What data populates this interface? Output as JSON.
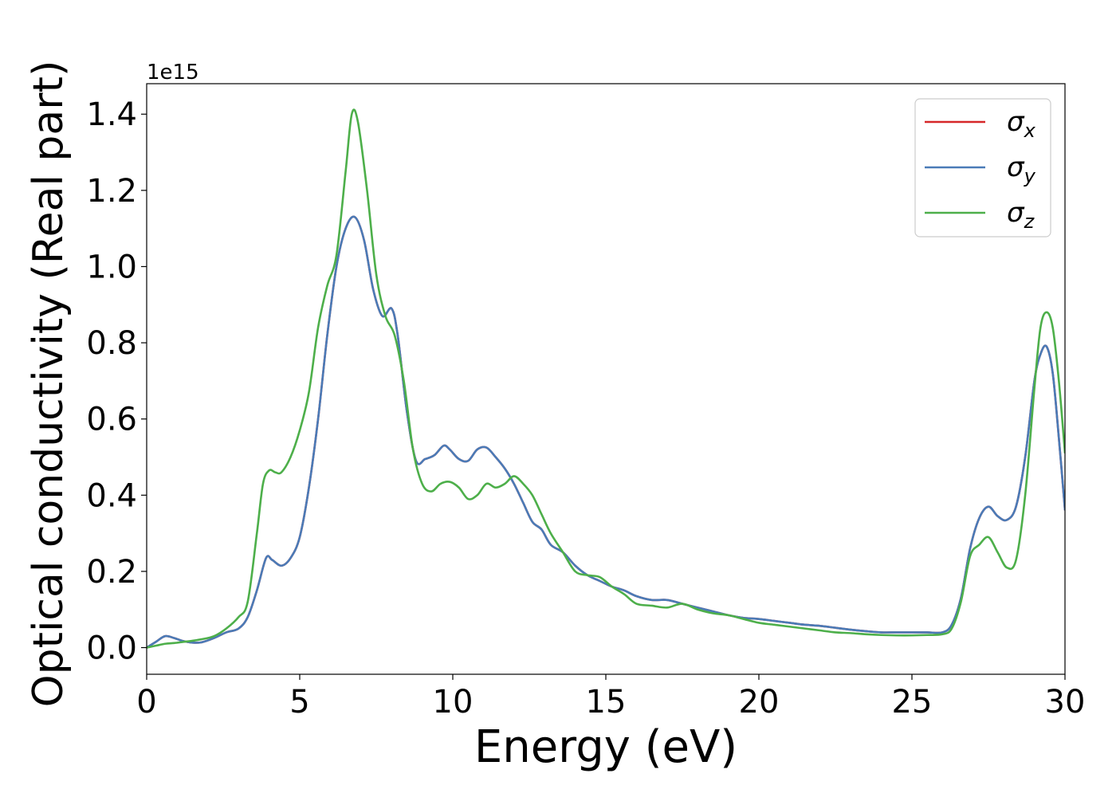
{
  "chart_data": {
    "type": "line",
    "xlabel": "Energy (eV)",
    "ylabel": "Optical conductivity (Real part)",
    "y_offset_text": "1e15",
    "y_scale": 1000000000000000.0,
    "xlim": [
      0,
      30
    ],
    "ylim": [
      -0.07,
      1.48
    ],
    "xticks": [
      0,
      5,
      10,
      15,
      20,
      25,
      30
    ],
    "xtick_labels": [
      "0",
      "5",
      "10",
      "15",
      "20",
      "25",
      "30"
    ],
    "yticks": [
      0.0,
      0.2,
      0.4,
      0.6,
      0.8,
      1.0,
      1.2,
      1.4
    ],
    "ytick_labels": [
      "0.0",
      "0.2",
      "0.4",
      "0.6",
      "0.8",
      "1.0",
      "1.2",
      "1.4"
    ],
    "grid": false,
    "legend_position": "top-right",
    "series": [
      {
        "name": "σx",
        "label_base": "σ",
        "label_sub": "x",
        "color": "#d62728",
        "x": [
          0,
          0.3,
          0.6,
          0.9,
          1.2,
          1.5,
          1.8,
          2.2,
          2.6,
          3.0,
          3.3,
          3.6,
          3.9,
          4.1,
          4.4,
          4.7,
          5.0,
          5.3,
          5.6,
          5.9,
          6.2,
          6.5,
          6.8,
          7.1,
          7.4,
          7.7,
          8.0,
          8.2,
          8.5,
          8.8,
          9.1,
          9.4,
          9.7,
          9.9,
          10.2,
          10.5,
          10.8,
          11.1,
          11.4,
          11.7,
          12.0,
          12.3,
          12.6,
          12.9,
          13.2,
          13.6,
          14.0,
          14.4,
          14.8,
          15.2,
          15.6,
          16.0,
          16.5,
          17.0,
          17.5,
          18.0,
          18.5,
          19.0,
          19.5,
          20.0,
          20.5,
          21.0,
          21.5,
          22.0,
          22.5,
          23.0,
          23.5,
          24.0,
          24.5,
          25.0,
          25.5,
          26.0,
          26.3,
          26.6,
          26.9,
          27.2,
          27.5,
          27.8,
          28.1,
          28.4,
          28.7,
          29.0,
          29.2,
          29.4,
          29.6,
          29.8,
          30.0
        ],
        "y": [
          0.0,
          0.015,
          0.03,
          0.025,
          0.017,
          0.013,
          0.014,
          0.025,
          0.04,
          0.05,
          0.08,
          0.15,
          0.235,
          0.23,
          0.215,
          0.235,
          0.29,
          0.42,
          0.6,
          0.82,
          1.0,
          1.1,
          1.13,
          1.07,
          0.94,
          0.87,
          0.89,
          0.82,
          0.62,
          0.49,
          0.495,
          0.505,
          0.53,
          0.52,
          0.495,
          0.49,
          0.52,
          0.525,
          0.5,
          0.47,
          0.43,
          0.38,
          0.33,
          0.31,
          0.27,
          0.25,
          0.215,
          0.19,
          0.175,
          0.16,
          0.15,
          0.135,
          0.125,
          0.125,
          0.115,
          0.105,
          0.095,
          0.085,
          0.078,
          0.075,
          0.07,
          0.065,
          0.06,
          0.057,
          0.052,
          0.047,
          0.043,
          0.04,
          0.04,
          0.04,
          0.04,
          0.04,
          0.06,
          0.13,
          0.26,
          0.34,
          0.37,
          0.345,
          0.335,
          0.37,
          0.5,
          0.7,
          0.77,
          0.79,
          0.72,
          0.55,
          0.36
        ]
      },
      {
        "name": "σy",
        "label_base": "σ",
        "label_sub": "y",
        "color": "#4a7bb7",
        "x": [
          0,
          0.3,
          0.6,
          0.9,
          1.2,
          1.5,
          1.8,
          2.2,
          2.6,
          3.0,
          3.3,
          3.6,
          3.9,
          4.1,
          4.4,
          4.7,
          5.0,
          5.3,
          5.6,
          5.9,
          6.2,
          6.5,
          6.8,
          7.1,
          7.4,
          7.7,
          8.0,
          8.2,
          8.5,
          8.8,
          9.1,
          9.4,
          9.7,
          9.9,
          10.2,
          10.5,
          10.8,
          11.1,
          11.4,
          11.7,
          12.0,
          12.3,
          12.6,
          12.9,
          13.2,
          13.6,
          14.0,
          14.4,
          14.8,
          15.2,
          15.6,
          16.0,
          16.5,
          17.0,
          17.5,
          18.0,
          18.5,
          19.0,
          19.5,
          20.0,
          20.5,
          21.0,
          21.5,
          22.0,
          22.5,
          23.0,
          23.5,
          24.0,
          24.5,
          25.0,
          25.5,
          26.0,
          26.3,
          26.6,
          26.9,
          27.2,
          27.5,
          27.8,
          28.1,
          28.4,
          28.7,
          29.0,
          29.2,
          29.4,
          29.6,
          29.8,
          30.0
        ],
        "y": [
          0.0,
          0.015,
          0.03,
          0.025,
          0.017,
          0.013,
          0.014,
          0.025,
          0.04,
          0.05,
          0.08,
          0.15,
          0.235,
          0.23,
          0.215,
          0.235,
          0.29,
          0.42,
          0.6,
          0.82,
          1.0,
          1.1,
          1.13,
          1.07,
          0.94,
          0.87,
          0.89,
          0.82,
          0.62,
          0.49,
          0.495,
          0.505,
          0.53,
          0.52,
          0.495,
          0.49,
          0.52,
          0.525,
          0.5,
          0.47,
          0.43,
          0.38,
          0.33,
          0.31,
          0.27,
          0.25,
          0.215,
          0.19,
          0.175,
          0.16,
          0.15,
          0.135,
          0.125,
          0.125,
          0.115,
          0.105,
          0.095,
          0.085,
          0.078,
          0.075,
          0.07,
          0.065,
          0.06,
          0.057,
          0.052,
          0.047,
          0.043,
          0.04,
          0.04,
          0.04,
          0.04,
          0.04,
          0.06,
          0.13,
          0.26,
          0.34,
          0.37,
          0.345,
          0.335,
          0.37,
          0.5,
          0.7,
          0.77,
          0.79,
          0.72,
          0.55,
          0.36
        ]
      },
      {
        "name": "σz",
        "label_base": "σ",
        "label_sub": "z",
        "color": "#4daf4a",
        "x": [
          0,
          0.3,
          0.6,
          0.9,
          1.2,
          1.5,
          1.8,
          2.2,
          2.6,
          3.0,
          3.3,
          3.6,
          3.8,
          4.0,
          4.2,
          4.4,
          4.7,
          5.0,
          5.3,
          5.6,
          5.9,
          6.2,
          6.5,
          6.7,
          6.9,
          7.2,
          7.5,
          7.8,
          8.1,
          8.4,
          8.7,
          9.0,
          9.3,
          9.6,
          9.9,
          10.2,
          10.5,
          10.8,
          11.1,
          11.4,
          11.7,
          12.0,
          12.3,
          12.6,
          12.9,
          13.2,
          13.6,
          14.0,
          14.4,
          14.8,
          15.2,
          15.6,
          16.0,
          16.5,
          17.0,
          17.5,
          18.0,
          18.5,
          19.0,
          19.5,
          20.0,
          20.5,
          21.0,
          21.5,
          22.0,
          22.5,
          23.0,
          23.5,
          24.0,
          24.5,
          25.0,
          25.5,
          26.0,
          26.3,
          26.6,
          26.9,
          27.2,
          27.5,
          27.8,
          28.1,
          28.4,
          28.7,
          29.0,
          29.2,
          29.4,
          29.6,
          29.8,
          30.0
        ],
        "y": [
          0.0,
          0.005,
          0.01,
          0.012,
          0.015,
          0.018,
          0.022,
          0.03,
          0.05,
          0.08,
          0.12,
          0.3,
          0.43,
          0.465,
          0.46,
          0.46,
          0.5,
          0.57,
          0.67,
          0.84,
          0.95,
          1.03,
          1.25,
          1.4,
          1.38,
          1.2,
          0.98,
          0.87,
          0.82,
          0.7,
          0.52,
          0.43,
          0.41,
          0.43,
          0.435,
          0.42,
          0.39,
          0.4,
          0.43,
          0.42,
          0.43,
          0.45,
          0.43,
          0.4,
          0.35,
          0.3,
          0.25,
          0.2,
          0.19,
          0.185,
          0.16,
          0.14,
          0.115,
          0.11,
          0.105,
          0.115,
          0.1,
          0.09,
          0.085,
          0.075,
          0.065,
          0.06,
          0.055,
          0.05,
          0.045,
          0.04,
          0.038,
          0.035,
          0.033,
          0.032,
          0.032,
          0.033,
          0.035,
          0.05,
          0.12,
          0.24,
          0.27,
          0.29,
          0.25,
          0.21,
          0.23,
          0.4,
          0.68,
          0.84,
          0.88,
          0.84,
          0.7,
          0.51
        ]
      }
    ]
  }
}
